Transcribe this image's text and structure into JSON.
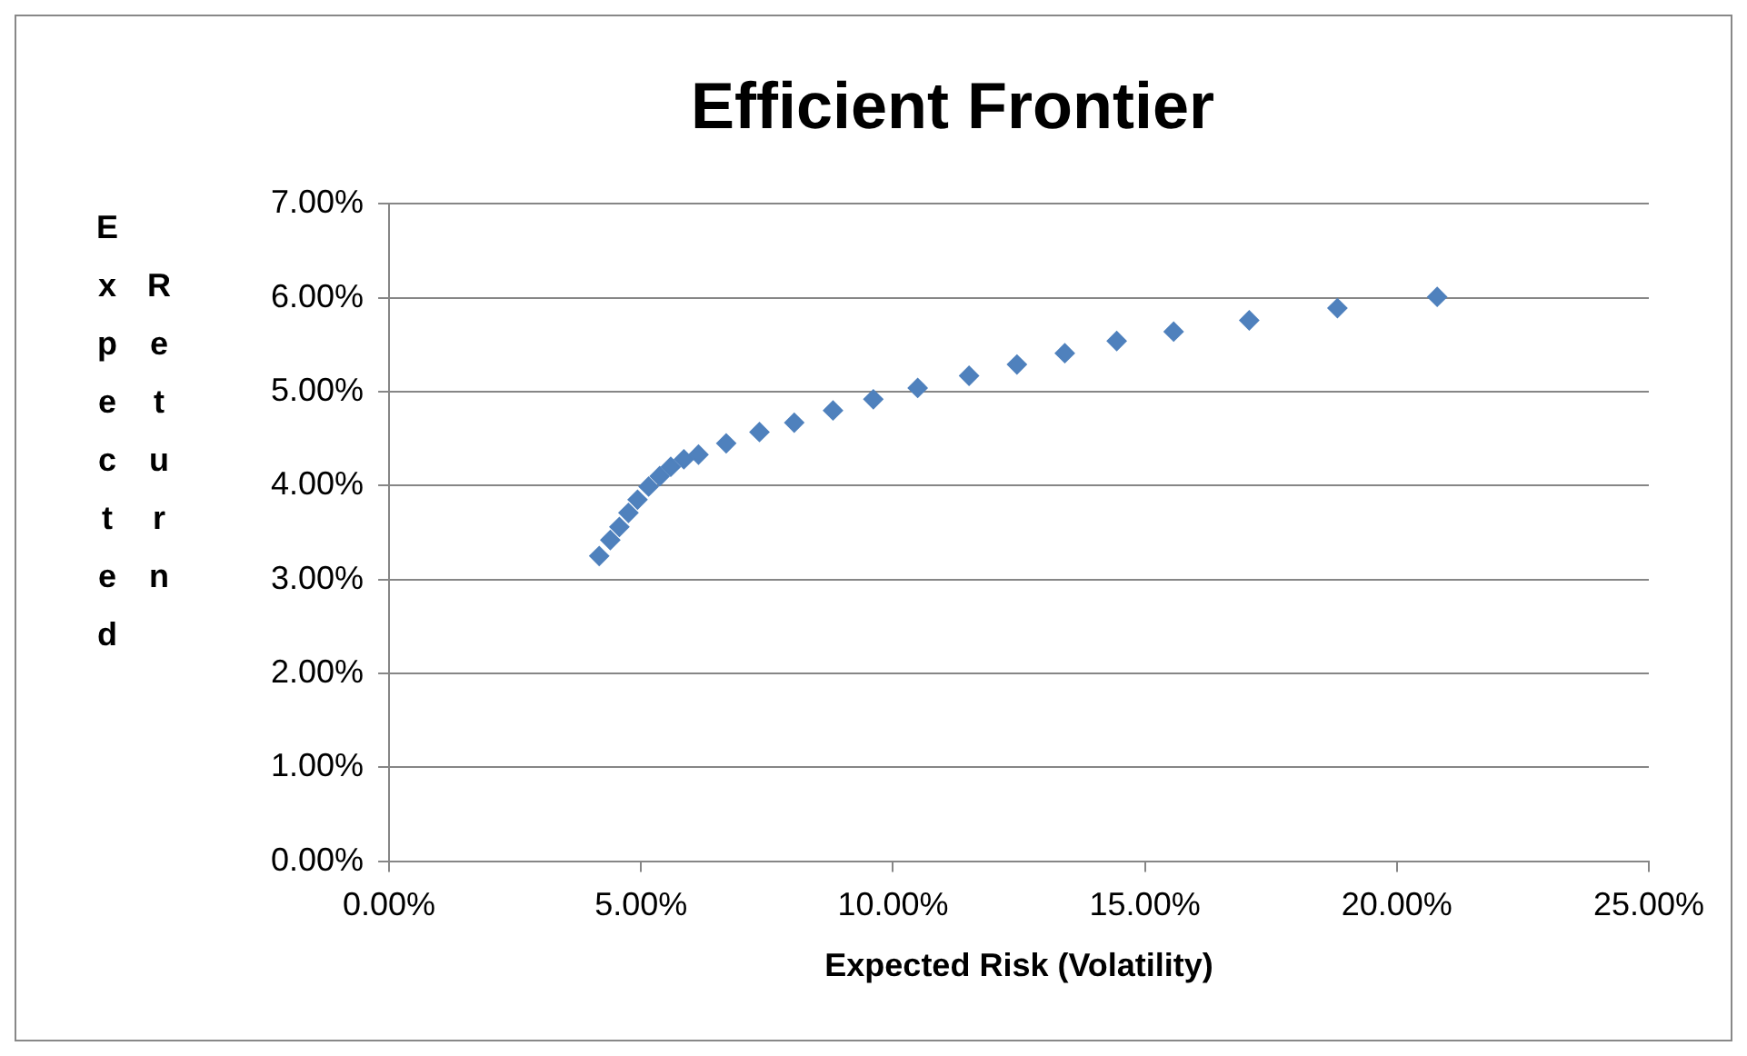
{
  "chart_data": {
    "type": "scatter",
    "title": "Efficient Frontier",
    "xlabel": "Expected Risk (Volatility)",
    "ylabel": "Expected Return",
    "x": [
      4.17,
      4.39,
      4.57,
      4.75,
      4.93,
      5.15,
      5.37,
      5.59,
      5.85,
      6.14,
      6.69,
      7.35,
      8.04,
      8.81,
      9.61,
      10.49,
      11.51,
      12.46,
      13.41,
      14.44,
      15.57,
      17.07,
      18.82,
      20.8
    ],
    "series": [
      {
        "color": "#4f81bd",
        "values": [
          3.25,
          3.42,
          3.56,
          3.71,
          3.85,
          3.99,
          4.1,
          4.2,
          4.28,
          4.33,
          4.45,
          4.57,
          4.67,
          4.8,
          4.92,
          5.04,
          5.17,
          5.29,
          5.41,
          5.54,
          5.64,
          5.76,
          5.89,
          6.01
        ]
      }
    ],
    "xlim": [
      0,
      25
    ],
    "xticks": [
      {
        "value": 0,
        "label": "0.00%"
      },
      {
        "value": 5,
        "label": "5.00%"
      },
      {
        "value": 10,
        "label": "10.00%"
      },
      {
        "value": 15,
        "label": "15.00%"
      },
      {
        "value": 20,
        "label": "20.00%"
      },
      {
        "value": 25,
        "label": "25.00%"
      }
    ],
    "ylim": [
      0,
      7
    ],
    "yticks": [
      {
        "value": 0,
        "label": "0.00%"
      },
      {
        "value": 1,
        "label": "1.00%"
      },
      {
        "value": 2,
        "label": "2.00%"
      },
      {
        "value": 3,
        "label": "3.00%"
      },
      {
        "value": 4,
        "label": "4.00%"
      },
      {
        "value": 5,
        "label": "5.00%"
      },
      {
        "value": 6,
        "label": "6.00%"
      },
      {
        "value": 7,
        "label": "7.00%"
      }
    ],
    "grid": "y",
    "legend": false,
    "marker": "diamond"
  }
}
